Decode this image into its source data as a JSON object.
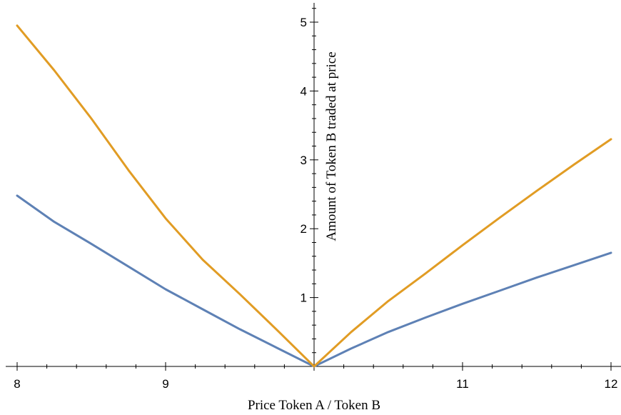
{
  "chart_data": {
    "type": "line",
    "title": "",
    "xlabel": "Price Token A / Token B",
    "ylabel": "Amount of Token B traded at price",
    "xlim": [
      8,
      12
    ],
    "ylim": [
      0,
      5
    ],
    "x_ticks": [
      8,
      9,
      11,
      12
    ],
    "y_ticks": [
      1,
      2,
      3,
      4,
      5
    ],
    "grid": false,
    "legend": "none",
    "series": [
      {
        "color": "#5E81B5",
        "x": [
          8,
          8.25,
          8.5,
          8.75,
          9,
          9.25,
          9.5,
          9.75,
          10,
          10.25,
          10.5,
          10.75,
          11,
          11.25,
          11.5,
          11.75,
          12
        ],
        "y": [
          2.48,
          2.1,
          1.78,
          1.45,
          1.12,
          0.83,
          0.54,
          0.27,
          0,
          0.26,
          0.5,
          0.71,
          0.91,
          1.1,
          1.29,
          1.47,
          1.65
        ]
      },
      {
        "color": "#E19C24",
        "x": [
          8,
          8.25,
          8.5,
          8.75,
          9,
          9.25,
          9.5,
          9.75,
          10,
          10.25,
          10.5,
          10.75,
          11,
          11.25,
          11.5,
          11.75,
          12
        ],
        "y": [
          4.95,
          4.3,
          3.6,
          2.85,
          2.15,
          1.55,
          1.05,
          0.53,
          0,
          0.5,
          0.95,
          1.35,
          1.76,
          2.16,
          2.55,
          2.93,
          3.3
        ]
      }
    ]
  }
}
